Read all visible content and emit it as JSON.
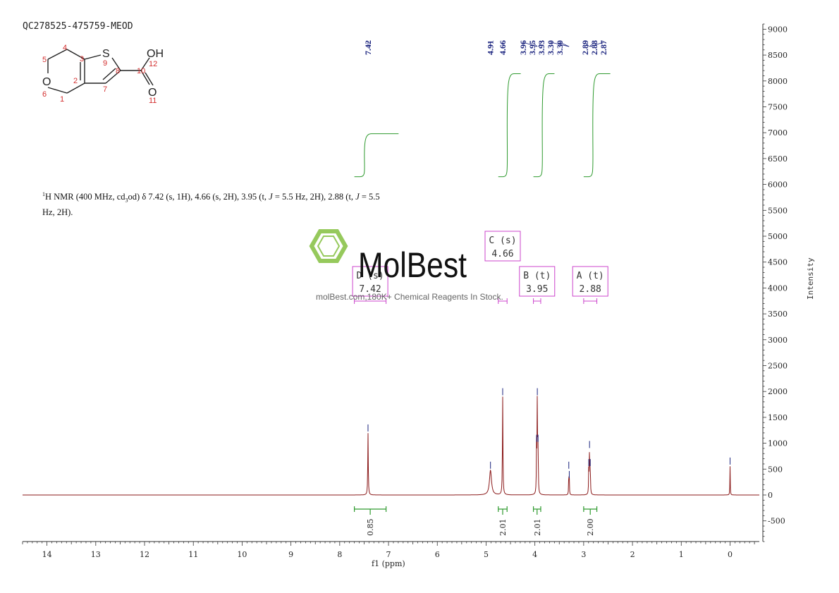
{
  "sample_id": "QC278525-475759-MEOD",
  "description": {
    "nucleus_sup": "1",
    "prefix": "H NMR (400 MHz, cd",
    "solvent_sub": "3",
    "rest_1": "od) δ 7.42 (s, 1H), 4.66 (s, 2H), 3.95 (t, ",
    "j1": "J",
    "rest_2": " = 5.5 Hz, 2H), 2.88 (t, ",
    "j2": "J",
    "rest_3": " = 5.5",
    "line2": "Hz, 2H)."
  },
  "structure": {
    "atom_numbers": [
      "1",
      "2",
      "3",
      "4",
      "5",
      "6",
      "7",
      "8",
      "9",
      "10",
      "11",
      "12"
    ],
    "labels": {
      "S": "S",
      "O_ring": "O",
      "OH": "OH",
      "O_carbonyl": "O"
    }
  },
  "watermark": {
    "brand": "MolBest",
    "tagline": "molBest.com,180K+ Chemical Reagents In Stock."
  },
  "chart_data": {
    "type": "line",
    "title": "",
    "xlabel": "f1 (ppm)",
    "ylabel": "Intensity",
    "xlim": [
      14.5,
      -0.6
    ],
    "ylim": [
      -900,
      9100
    ],
    "x_ticks": [
      14,
      13,
      12,
      11,
      10,
      9,
      8,
      7,
      6,
      5,
      4,
      3,
      2,
      1,
      0
    ],
    "y_ticks": [
      -500,
      0,
      500,
      1000,
      1500,
      2000,
      2500,
      3000,
      3500,
      4000,
      4500,
      5000,
      5500,
      6000,
      6500,
      7000,
      7500,
      8000,
      8500,
      9000
    ],
    "peak_labels": [
      "7.42",
      "4.91",
      "4.66",
      "3.96",
      "3.95",
      "3.93",
      "3.30",
      "3.30",
      "2.89",
      "2.88",
      "2.87"
    ],
    "peaks": [
      {
        "ppm": 7.42,
        "height": 1200,
        "width": 0.006
      },
      {
        "ppm": 4.91,
        "height": 480,
        "width": 0.025
      },
      {
        "ppm": 4.66,
        "height": 1900,
        "width": 0.006
      },
      {
        "ppm": 3.965,
        "height": 1000,
        "width": 0.005
      },
      {
        "ppm": 3.95,
        "height": 1900,
        "width": 0.005
      },
      {
        "ppm": 3.935,
        "height": 1000,
        "width": 0.005
      },
      {
        "ppm": 3.305,
        "height": 480,
        "width": 0.004
      },
      {
        "ppm": 3.295,
        "height": 300,
        "width": 0.004
      },
      {
        "ppm": 2.895,
        "height": 530,
        "width": 0.005
      },
      {
        "ppm": 2.88,
        "height": 880,
        "width": 0.005
      },
      {
        "ppm": 2.865,
        "height": 530,
        "width": 0.005
      },
      {
        "ppm": 0.0,
        "height": 560,
        "width": 0.004
      }
    ],
    "multiplets": [
      {
        "letter": "D",
        "mult": "(s)",
        "shift": "7.42",
        "range": [
          7.7,
          7.05
        ]
      },
      {
        "letter": "C",
        "mult": "(s)",
        "shift": "4.66",
        "range": [
          4.75,
          4.57
        ]
      },
      {
        "letter": "B",
        "mult": "(t)",
        "shift": "3.95",
        "range": [
          4.03,
          3.88
        ]
      },
      {
        "letter": "A",
        "mult": "(t)",
        "shift": "2.88",
        "range": [
          3.0,
          2.73
        ]
      }
    ],
    "integrals": [
      {
        "value": "0.85",
        "range": [
          7.7,
          7.05
        ],
        "curve_low": 6150,
        "curve_high": 6980
      },
      {
        "value": "2.01",
        "range": [
          4.75,
          4.57
        ],
        "curve_low": 6150,
        "curve_high": 8140
      },
      {
        "value": "2.01",
        "range": [
          4.03,
          3.88
        ],
        "curve_low": 6150,
        "curve_high": 8140
      },
      {
        "value": "2.00",
        "range": [
          3.0,
          2.73
        ],
        "curve_low": 6150,
        "curve_high": 8140
      }
    ],
    "colors": {
      "spectrum": "#8b1a1a",
      "integral": "#2e9a2e",
      "peak_label": "#1a237e",
      "multiplet_box": "#cc44cc",
      "watermark": "#8bc34a"
    }
  }
}
